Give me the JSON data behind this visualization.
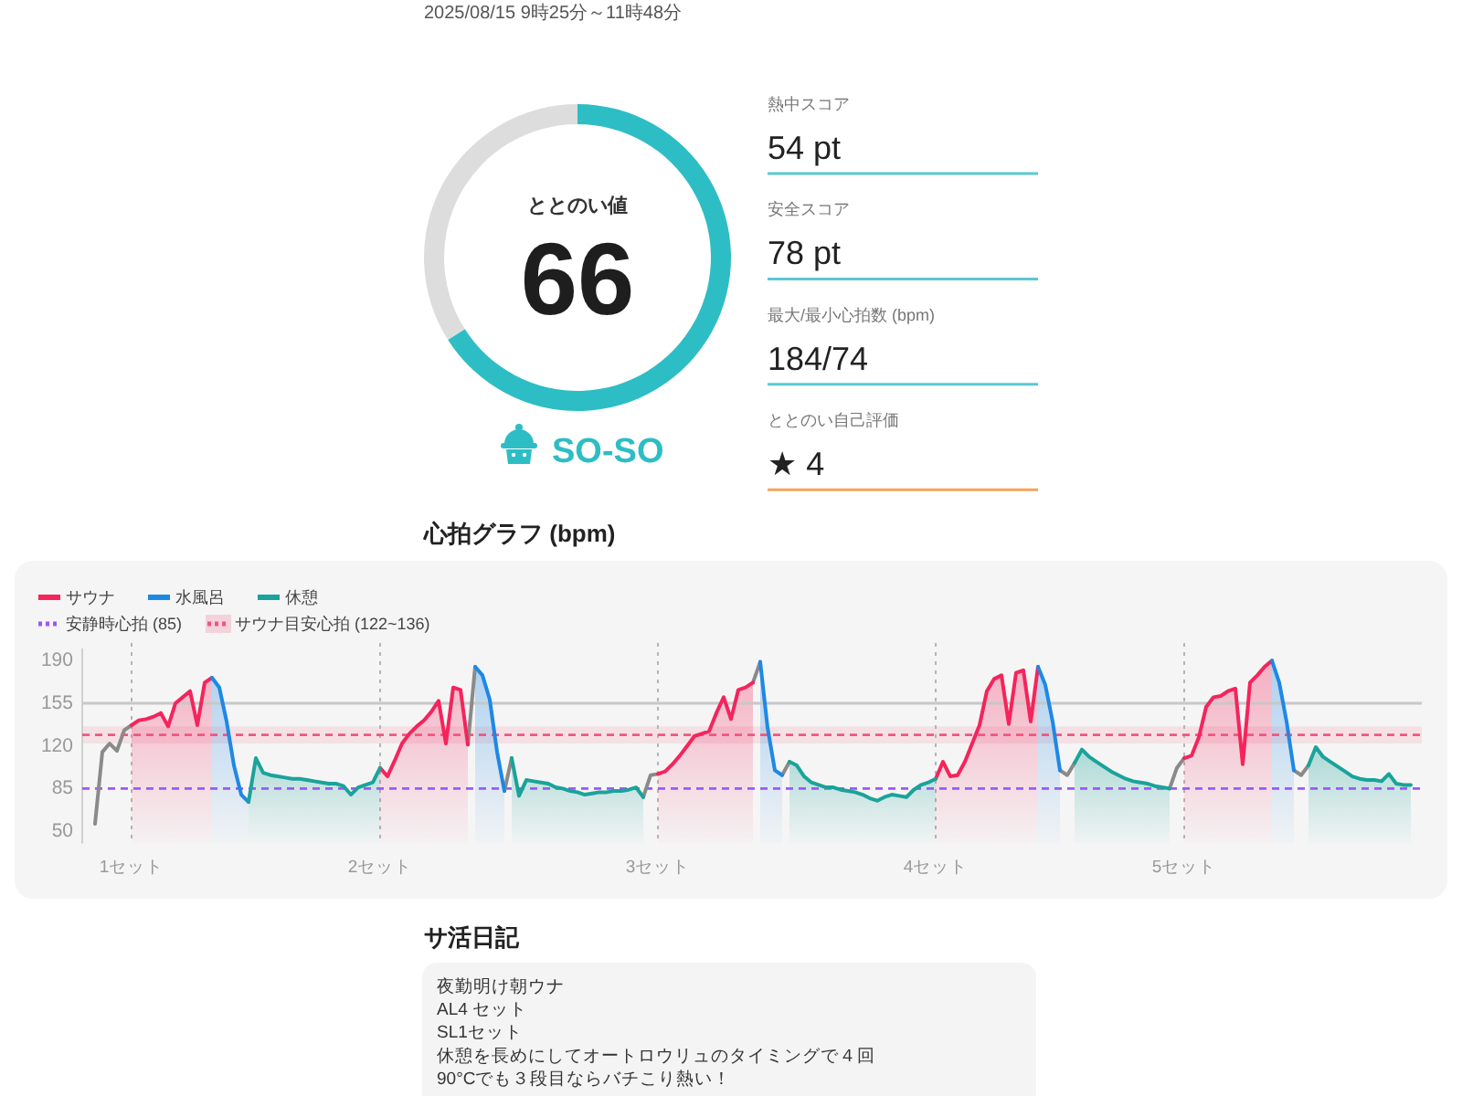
{
  "chart_data": [
    {
      "type": "donut",
      "title": "2025/08/15 9時25分～11時48分",
      "subtitle": "ととのい値",
      "categories": [
        null,
        null
      ],
      "values": [
        66,
        34
      ],
      "colors": [
        "#2dbdc5",
        "#dddddd"
      ],
      "value_labels": [
        "66",
        null
      ],
      "annotations": [
        "SO-SO"
      ]
    },
    {
      "type": "other",
      "categories": [
        "熱中スコア",
        "安全スコア",
        "最大/最小心拍数 (bpm)",
        "ととのい自己評価"
      ],
      "value_labels": [
        "54 pt",
        "78 pt",
        "184/74",
        "★ 4"
      ],
      "colors": [
        "#5bc8d2",
        "#5bc8d2",
        "#5bc8d2",
        "#f5a35a"
      ]
    },
    {
      "type": "area",
      "title": "心拍グラフ (bpm)",
      "categories": [
        null,
        null,
        null,
        null,
        null,
        "1セット",
        null,
        null,
        null,
        null,
        null,
        null,
        null,
        null,
        null,
        null,
        null,
        null,
        null,
        null,
        null,
        null,
        null,
        null,
        null,
        null,
        null,
        null,
        null,
        null,
        null,
        null,
        null,
        null,
        null,
        null,
        null,
        null,
        null,
        "2セット",
        null,
        null,
        null,
        null,
        null,
        null,
        null,
        null,
        null,
        null,
        null,
        null,
        null,
        null,
        null,
        null,
        null,
        null,
        null,
        null,
        null,
        null,
        null,
        null,
        null,
        null,
        null,
        null,
        null,
        null,
        null,
        null,
        null,
        null,
        null,
        null,
        null,
        "3セット",
        null,
        null,
        null,
        null,
        null,
        null,
        null,
        null,
        null,
        null,
        null,
        null,
        null,
        null,
        null,
        null,
        null,
        null,
        null,
        null,
        null,
        null,
        null,
        null,
        null,
        null,
        null,
        null,
        null,
        null,
        null,
        null,
        null,
        null,
        null,
        null,
        null,
        "4セット",
        null,
        null,
        null,
        null,
        null,
        null,
        null,
        null,
        null,
        null,
        null,
        null,
        null,
        null,
        null,
        null,
        null,
        null,
        null,
        null,
        null,
        null,
        null,
        null,
        null,
        null,
        null,
        null,
        null,
        null,
        null,
        null,
        null,
        "5セット",
        null,
        null,
        null,
        null,
        null,
        null,
        null,
        null,
        null,
        null,
        null,
        null,
        null,
        null,
        null,
        null,
        null,
        null,
        null,
        null,
        null,
        null,
        null,
        null,
        null,
        null,
        null,
        null,
        null,
        null,
        null
      ],
      "series": [
        {
          "type": "line",
          "color": "#8a8a8a",
          "values": [
            56,
            115,
            122,
            116,
            133,
            137,
            null,
            null,
            null,
            null,
            null,
            null,
            null,
            null,
            null,
            null,
            null,
            null,
            null,
            null,
            null,
            null,
            null,
            null,
            null,
            null,
            null,
            null,
            null,
            null,
            null,
            null,
            null,
            null,
            null,
            null,
            null,
            null,
            null,
            null,
            null,
            null,
            null,
            null,
            null,
            null,
            null,
            null,
            null,
            null,
            null,
            121,
            185,
            null,
            null,
            null,
            83,
            110,
            null,
            null,
            null,
            null,
            null,
            null,
            null,
            null,
            null,
            null,
            null,
            null,
            null,
            null,
            null,
            null,
            null,
            78,
            96,
            97,
            null,
            null,
            null,
            null,
            null,
            null,
            null,
            null,
            null,
            null,
            null,
            null,
            172,
            189,
            null,
            null,
            96,
            107,
            null,
            null,
            null,
            null,
            null,
            null,
            null,
            null,
            null,
            null,
            null,
            null,
            null,
            null,
            null,
            null,
            null,
            null,
            null,
            null,
            null,
            null,
            null,
            null,
            null,
            null,
            null,
            null,
            null,
            null,
            null,
            null,
            null,
            null,
            null,
            null,
            100,
            96,
            106,
            null,
            null,
            null,
            null,
            null,
            null,
            null,
            null,
            null,
            null,
            null,
            null,
            85,
            102,
            110,
            null,
            null,
            null,
            null,
            null,
            null,
            null,
            null,
            null,
            null,
            null,
            null,
            null,
            null,
            100,
            96,
            104,
            null,
            null,
            null,
            null,
            null,
            null,
            null,
            null,
            null,
            null,
            null,
            null,
            null,
            null
          ]
        },
        {
          "name": "サウナ",
          "color": "#f5245c",
          "values": [
            null,
            null,
            null,
            null,
            null,
            137,
            141,
            142,
            144,
            147,
            136,
            155,
            160,
            165,
            137,
            172,
            176,
            null,
            null,
            null,
            null,
            null,
            null,
            null,
            null,
            null,
            null,
            null,
            null,
            null,
            null,
            null,
            null,
            null,
            null,
            null,
            null,
            null,
            null,
            102,
            95,
            108,
            122,
            130,
            136,
            141,
            148,
            157,
            122,
            168,
            166,
            121,
            null,
            null,
            null,
            null,
            null,
            null,
            null,
            null,
            null,
            null,
            null,
            null,
            null,
            null,
            null,
            null,
            null,
            null,
            null,
            null,
            null,
            null,
            null,
            null,
            null,
            97,
            99,
            105,
            112,
            120,
            128,
            130,
            132,
            147,
            160,
            142,
            166,
            168,
            172,
            null,
            null,
            null,
            null,
            null,
            null,
            null,
            null,
            null,
            null,
            null,
            null,
            null,
            null,
            null,
            null,
            null,
            null,
            null,
            null,
            null,
            null,
            null,
            null,
            93,
            107,
            95,
            96,
            107,
            122,
            137,
            165,
            175,
            178,
            138,
            180,
            182,
            140,
            185,
            null,
            null,
            null,
            null,
            null,
            null,
            null,
            null,
            null,
            null,
            null,
            null,
            null,
            null,
            null,
            null,
            null,
            null,
            null,
            110,
            112,
            127,
            152,
            160,
            161,
            165,
            167,
            105,
            172,
            178,
            185,
            190,
            null,
            null,
            null,
            null,
            null,
            null,
            null,
            null,
            null,
            null,
            null,
            null,
            null,
            null,
            null,
            null,
            null,
            null,
            null
          ]
        },
        {
          "name": "水風呂",
          "color": "#1e88e5",
          "values": [
            null,
            null,
            null,
            null,
            null,
            null,
            null,
            null,
            null,
            null,
            null,
            null,
            null,
            null,
            null,
            null,
            176,
            168,
            140,
            104,
            80,
            74,
            null,
            null,
            null,
            null,
            null,
            null,
            null,
            null,
            null,
            null,
            null,
            null,
            null,
            null,
            null,
            null,
            null,
            null,
            null,
            null,
            null,
            null,
            null,
            null,
            null,
            null,
            null,
            null,
            null,
            null,
            185,
            178,
            158,
            115,
            83,
            null,
            null,
            null,
            null,
            null,
            null,
            null,
            null,
            null,
            null,
            null,
            null,
            null,
            null,
            null,
            null,
            null,
            null,
            null,
            null,
            null,
            null,
            null,
            null,
            null,
            null,
            null,
            null,
            null,
            null,
            null,
            null,
            null,
            null,
            189,
            135,
            100,
            96,
            null,
            null,
            null,
            null,
            null,
            null,
            null,
            null,
            null,
            null,
            null,
            null,
            null,
            null,
            null,
            null,
            null,
            null,
            null,
            null,
            null,
            null,
            null,
            null,
            null,
            null,
            null,
            null,
            null,
            null,
            null,
            null,
            null,
            null,
            185,
            170,
            140,
            100,
            null,
            null,
            null,
            null,
            null,
            null,
            null,
            null,
            null,
            null,
            null,
            null,
            null,
            null,
            null,
            null,
            null,
            null,
            null,
            null,
            null,
            null,
            null,
            null,
            null,
            null,
            null,
            null,
            190,
            172,
            140,
            100,
            null,
            null,
            null,
            null,
            null,
            null,
            null,
            null,
            null,
            null,
            null,
            null,
            null,
            null,
            null,
            null
          ]
        },
        {
          "name": "休憩",
          "color": "#1aa39a",
          "values": [
            null,
            null,
            null,
            null,
            null,
            null,
            null,
            null,
            null,
            null,
            null,
            null,
            null,
            null,
            null,
            null,
            null,
            null,
            null,
            null,
            null,
            74,
            110,
            98,
            96,
            95,
            94,
            93,
            93,
            92,
            91,
            90,
            89,
            89,
            87,
            80,
            86,
            88,
            90,
            102,
            null,
            null,
            null,
            null,
            null,
            null,
            null,
            null,
            null,
            null,
            null,
            null,
            null,
            null,
            null,
            null,
            null,
            110,
            79,
            92,
            91,
            90,
            89,
            86,
            85,
            83,
            82,
            80,
            81,
            82,
            82,
            83,
            83,
            84,
            86,
            78,
            null,
            null,
            null,
            null,
            null,
            null,
            null,
            null,
            null,
            null,
            null,
            null,
            null,
            null,
            null,
            null,
            null,
            null,
            null,
            107,
            104,
            95,
            90,
            88,
            86,
            86,
            84,
            83,
            82,
            80,
            77,
            75,
            78,
            80,
            79,
            78,
            84,
            88,
            90,
            93,
            null,
            null,
            null,
            null,
            null,
            null,
            null,
            null,
            null,
            null,
            null,
            null,
            null,
            null,
            null,
            null,
            null,
            null,
            106,
            117,
            111,
            107,
            103,
            99,
            96,
            93,
            91,
            90,
            89,
            87,
            86,
            85,
            null,
            null,
            null,
            null,
            null,
            null,
            null,
            null,
            null,
            null,
            null,
            null,
            null,
            null,
            null,
            null,
            null,
            null,
            104,
            119,
            111,
            107,
            103,
            99,
            95,
            93,
            92,
            92,
            91,
            97,
            89,
            88,
            88
          ]
        }
      ],
      "ylim": [
        40,
        200
      ],
      "yticks": [
        50,
        85,
        120,
        155,
        190
      ],
      "grid": "x",
      "legend": "top left",
      "ref_lines": [
        {
          "axis": "y",
          "value": 155,
          "color": "#c8c8c8",
          "line_style": "solid"
        },
        {
          "axis": "y",
          "value": 129,
          "color": "#f2557f",
          "line_style": "dashed"
        },
        {
          "axis": "y",
          "value": 85,
          "label": "安静時心拍 (85)",
          "color": "#9b59f5",
          "line_style": "dashed"
        }
      ],
      "bands": [
        {
          "axis": "y",
          "from": 122,
          "to": 136,
          "label": "サウナ目安心拍 (122~136)",
          "color": "#f2557f"
        }
      ]
    },
    {
      "type": "other",
      "title": "サ活日記",
      "annotations": [
        "夜勤明け朝ウナ",
        "AL4 セット",
        "SL1セット",
        "休憩を長めにしてオートロウリュのタイミングで４回",
        "90°Cでも３段目ならバチこり熱い！"
      ]
    }
  ]
}
